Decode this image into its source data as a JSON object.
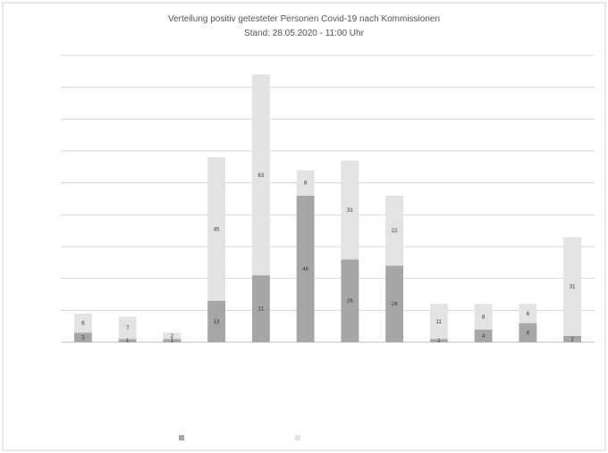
{
  "chart_data": {
    "type": "bar",
    "stacked": true,
    "title": "Verteilung positiv getesteter Personen Covid-19 nach Kommissionen",
    "subtitle": "Stand: 28.05.2020 - 11:00 Uhr",
    "categories": [
      "",
      "",
      "",
      "",
      "",
      "",
      "",
      "",
      "",
      "",
      "",
      ""
    ],
    "series": [
      {
        "name": "",
        "values": [
          3,
          1,
          1,
          13,
          21,
          46,
          26,
          24,
          1,
          4,
          6,
          2
        ]
      },
      {
        "name": "",
        "values": [
          6,
          7,
          2,
          45,
          63,
          8,
          31,
          22,
          11,
          8,
          6,
          31
        ]
      }
    ],
    "ylim": [
      0,
      90
    ],
    "grid": true,
    "legend": "bottom",
    "colors": {
      "series_0": "#a6a6a6",
      "series_1": "#e3e3e3",
      "grid": "#d9d9d9",
      "border": "#d0d0d0"
    }
  }
}
